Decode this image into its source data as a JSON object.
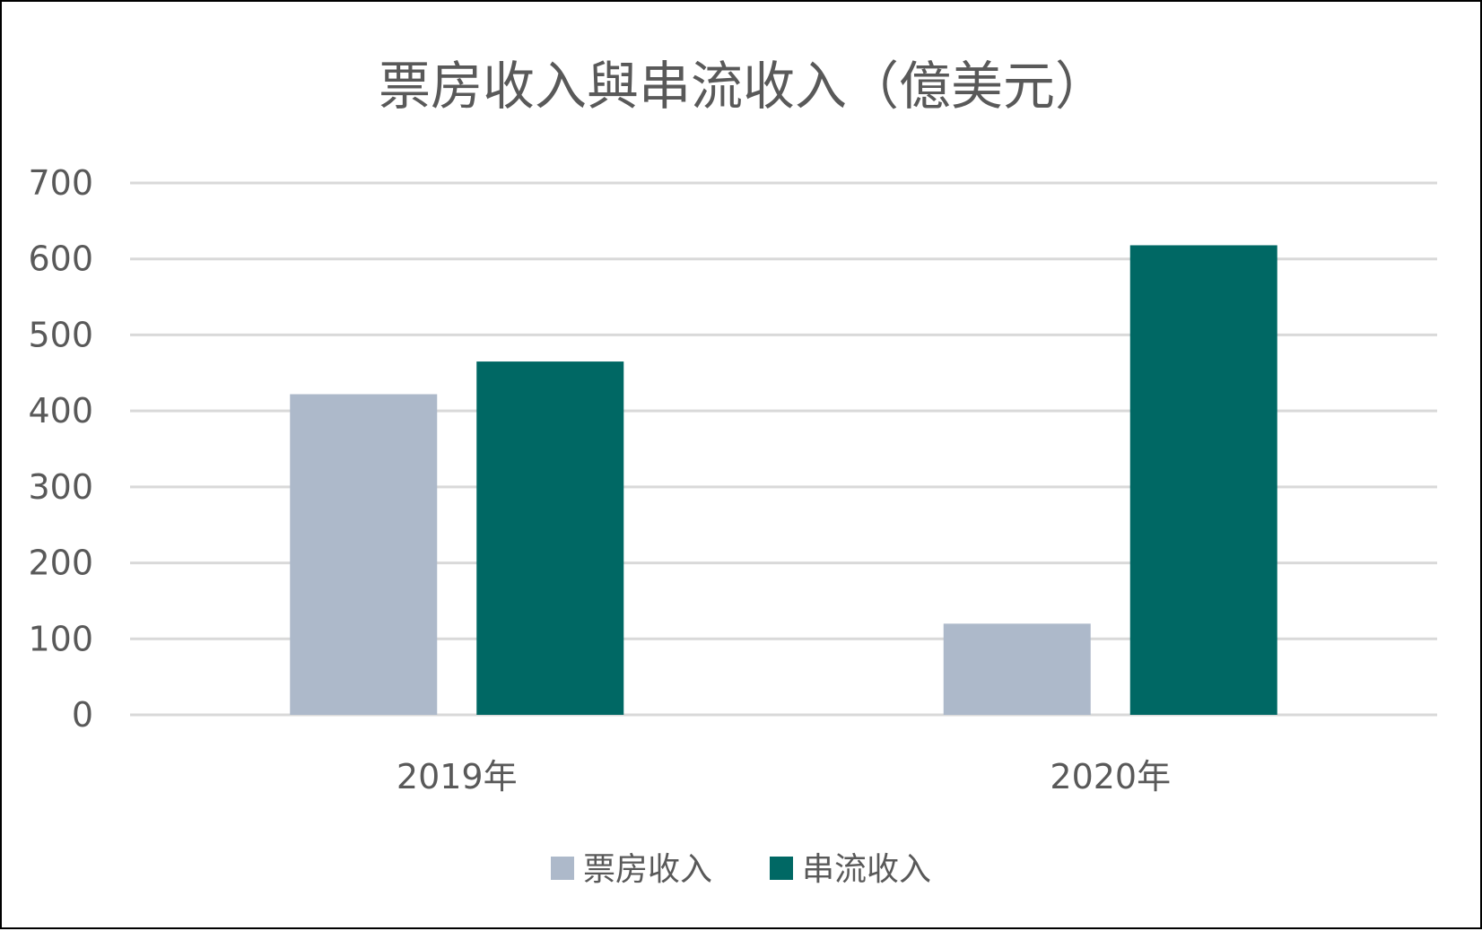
{
  "chart_data": {
    "type": "bar",
    "title": "票房收入與串流收入（億美元）",
    "categories": [
      "2019年",
      "2020年"
    ],
    "series": [
      {
        "name": "票房收入",
        "values": [
          422,
          120
        ],
        "color": "#adb9ca"
      },
      {
        "name": "串流收入",
        "values": [
          465,
          618
        ],
        "color": "#006864"
      }
    ],
    "ylim": [
      0,
      700
    ],
    "yticks": [
      "0",
      "100",
      "200",
      "300",
      "400",
      "500",
      "600",
      "700"
    ],
    "grid": true,
    "legend_position": "bottom",
    "xlabel": "",
    "ylabel": ""
  }
}
